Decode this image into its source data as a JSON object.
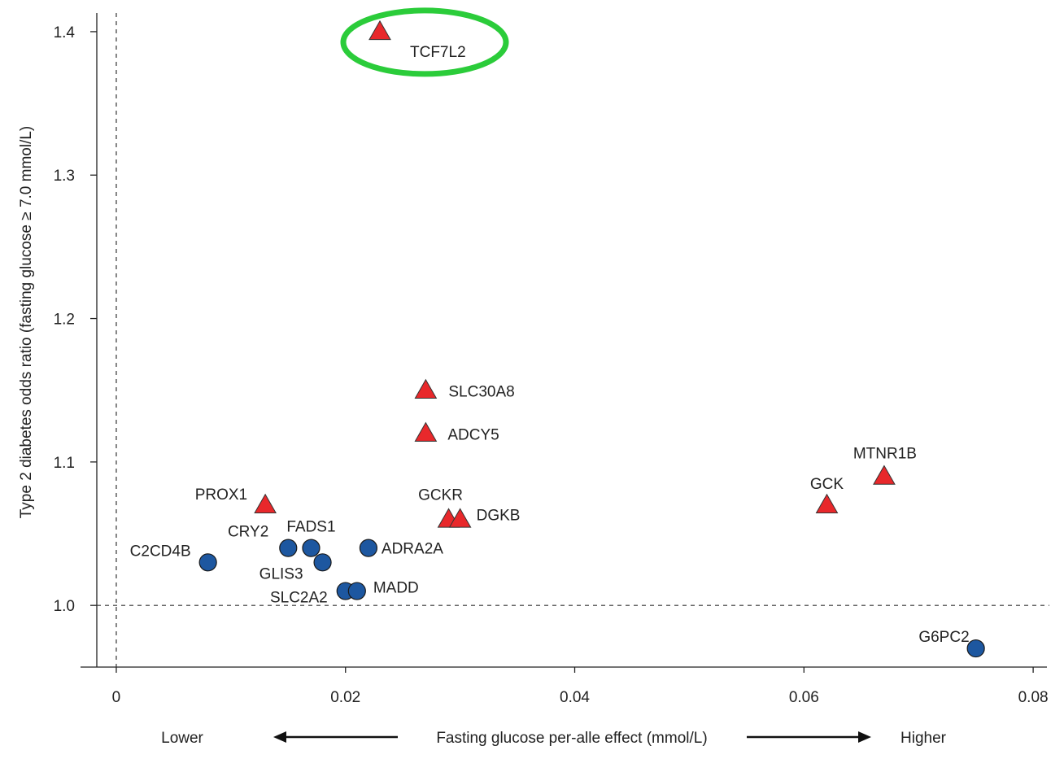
{
  "chart_data": {
    "type": "scatter",
    "xlabel": "Fasting glucose per-alle effect (mmol/L)",
    "ylabel": "Type 2 diabetes odds ratio (fasting glucose ≥ 7.0 mmol/L)",
    "xlim": [
      -0.0017,
      0.0812
    ],
    "ylim": [
      0.957,
      1.413
    ],
    "xticks": [
      "0",
      "0.02",
      "0.04",
      "0.06",
      "0.08"
    ],
    "xtick_values": [
      0,
      0.02,
      0.04,
      0.06,
      0.08
    ],
    "yticks": [
      "1.0",
      "1.1",
      "1.2",
      "1.3",
      "1.4"
    ],
    "ytick_values": [
      1.0,
      1.1,
      1.2,
      1.3,
      1.4
    ],
    "reference_lines": {
      "x": 0,
      "y": 1.0
    },
    "x_direction": {
      "lower": "Lower",
      "higher": "Higher"
    },
    "points": [
      {
        "label": "TCF7L2",
        "x": 0.023,
        "y": 1.4,
        "marker": "triangle",
        "color": "#e8282b"
      },
      {
        "label": "SLC30A8",
        "x": 0.027,
        "y": 1.15,
        "marker": "triangle",
        "color": "#e8282b"
      },
      {
        "label": "ADCY5",
        "x": 0.027,
        "y": 1.12,
        "marker": "triangle",
        "color": "#e8282b"
      },
      {
        "label": "PROX1",
        "x": 0.013,
        "y": 1.07,
        "marker": "triangle",
        "color": "#e8282b"
      },
      {
        "label": "GCKR",
        "x": 0.029,
        "y": 1.06,
        "marker": "triangle",
        "color": "#e8282b"
      },
      {
        "label": "DGKB",
        "x": 0.03,
        "y": 1.06,
        "marker": "triangle",
        "color": "#e8282b"
      },
      {
        "label": "GCK",
        "x": 0.062,
        "y": 1.07,
        "marker": "triangle",
        "color": "#e8282b"
      },
      {
        "label": "MTNR1B",
        "x": 0.067,
        "y": 1.09,
        "marker": "triangle",
        "color": "#e8282b"
      },
      {
        "label": "C2CD4B",
        "x": 0.008,
        "y": 1.03,
        "marker": "circle",
        "color": "#1d57a0"
      },
      {
        "label": "CRY2",
        "x": 0.015,
        "y": 1.04,
        "marker": "circle",
        "color": "#1d57a0"
      },
      {
        "label": "FADS1",
        "x": 0.017,
        "y": 1.04,
        "marker": "circle",
        "color": "#1d57a0"
      },
      {
        "label": "GLIS3",
        "x": 0.018,
        "y": 1.03,
        "marker": "circle",
        "color": "#1d57a0"
      },
      {
        "label": "ADRA2A",
        "x": 0.022,
        "y": 1.04,
        "marker": "circle",
        "color": "#1d57a0"
      },
      {
        "label": "SLC2A2",
        "x": 0.02,
        "y": 1.01,
        "marker": "circle",
        "color": "#1d57a0"
      },
      {
        "label": "MADD",
        "x": 0.021,
        "y": 1.01,
        "marker": "circle",
        "color": "#1d57a0"
      },
      {
        "label": "G6PC2",
        "x": 0.075,
        "y": 0.97,
        "marker": "circle",
        "color": "#1d57a0"
      }
    ],
    "highlight": {
      "label": "TCF7L2",
      "shape": "ellipse",
      "color": "#2bcc3a"
    }
  }
}
